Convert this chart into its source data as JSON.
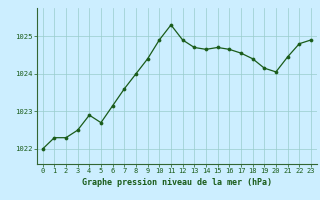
{
  "x": [
    0,
    1,
    2,
    3,
    4,
    5,
    6,
    7,
    8,
    9,
    10,
    11,
    12,
    13,
    14,
    15,
    16,
    17,
    18,
    19,
    20,
    21,
    22,
    23
  ],
  "y": [
    1022.0,
    1022.3,
    1022.3,
    1022.5,
    1022.9,
    1022.7,
    1023.15,
    1023.6,
    1024.0,
    1024.4,
    1024.9,
    1025.3,
    1024.9,
    1024.7,
    1024.65,
    1024.7,
    1024.65,
    1024.55,
    1024.4,
    1024.15,
    1024.05,
    1024.45,
    1024.8,
    1024.9
  ],
  "line_color": "#1a5c1a",
  "marker_color": "#1a5c1a",
  "bg_color": "#cceeff",
  "plot_bg_color": "#cceeff",
  "grid_color": "#99cccc",
  "title": "Graphe pression niveau de la mer (hPa)",
  "title_color": "#1a5c1a",
  "ylim_min": 1021.6,
  "ylim_max": 1025.75,
  "yticks": [
    1022,
    1023,
    1024,
    1025
  ],
  "xtick_labels": [
    "0",
    "1",
    "2",
    "3",
    "4",
    "5",
    "6",
    "7",
    "8",
    "9",
    "10",
    "11",
    "12",
    "13",
    "14",
    "15",
    "16",
    "17",
    "18",
    "19",
    "20",
    "21",
    "22",
    "23"
  ]
}
